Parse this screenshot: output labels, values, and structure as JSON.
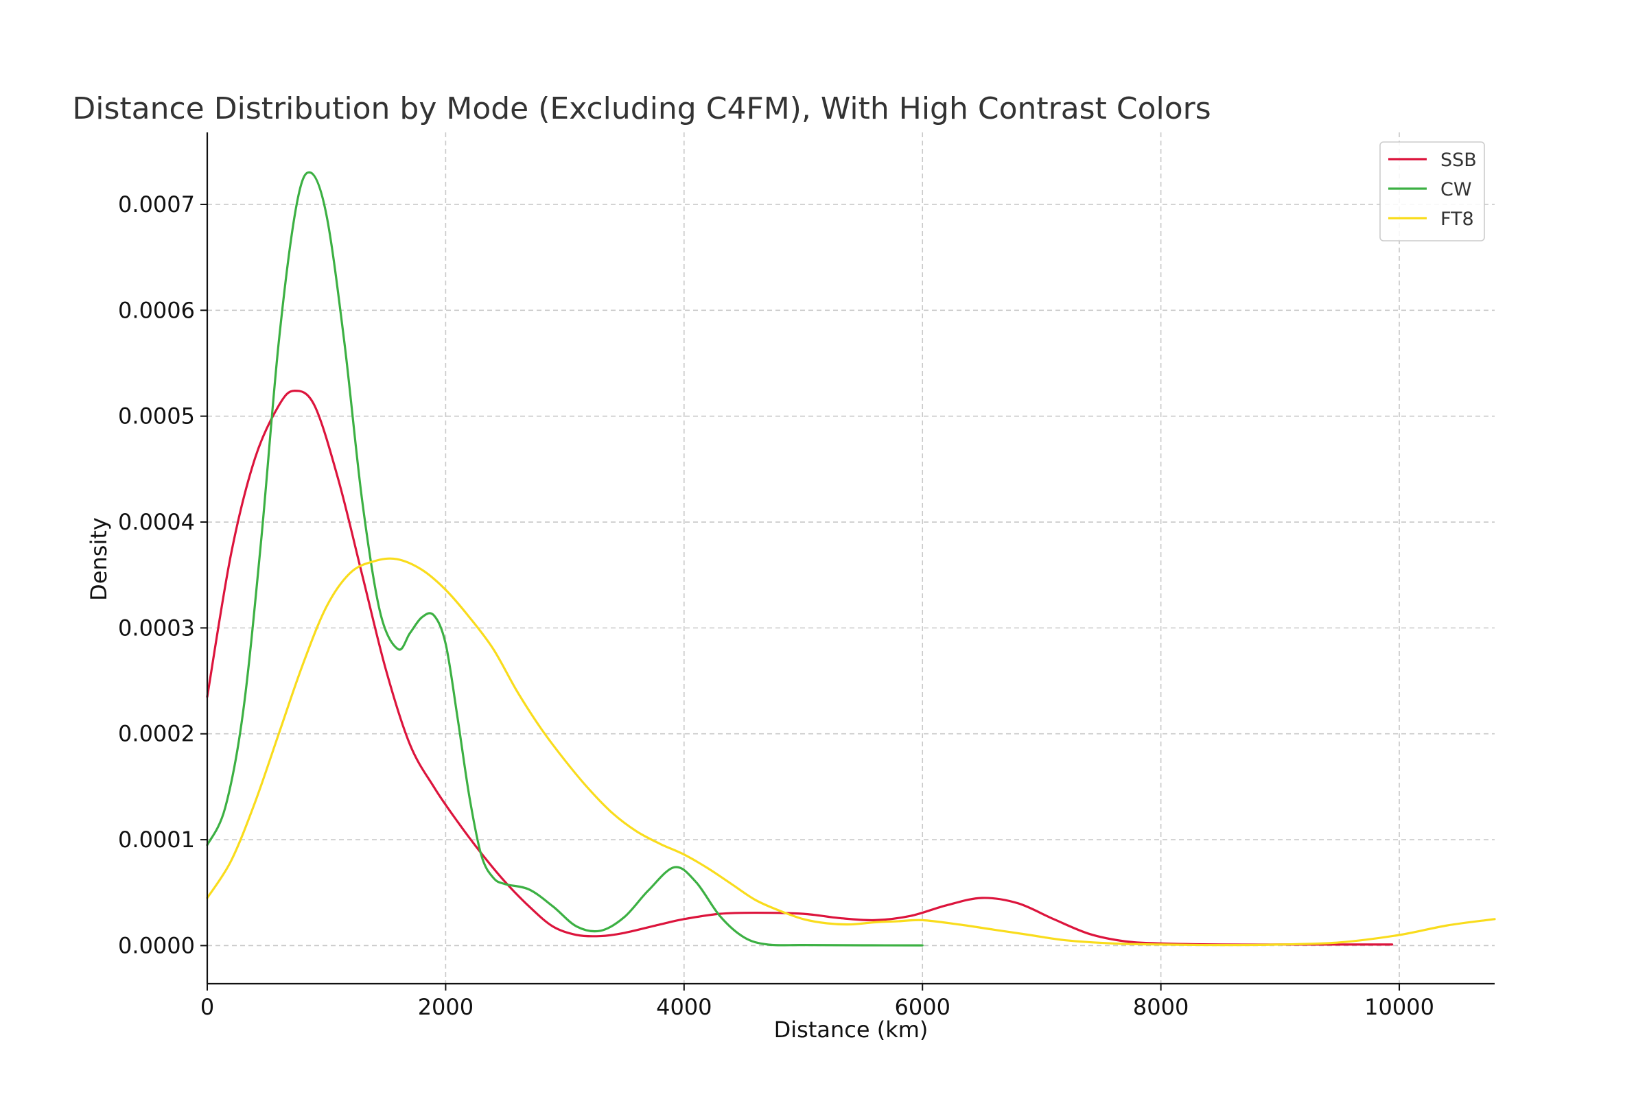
{
  "chart_data": {
    "type": "line",
    "title": "Distance Distribution by Mode (Excluding C4FM), With High Contrast Colors",
    "xlabel": "Distance (km)",
    "ylabel": "Density",
    "xlim": [
      0,
      10800
    ],
    "ylim": [
      -3.6e-05,
      0.000768
    ],
    "x_ticks": [
      0,
      2000,
      4000,
      6000,
      8000,
      10000
    ],
    "x_tick_labels": [
      "0",
      "2000",
      "4000",
      "6000",
      "8000",
      "10000"
    ],
    "y_ticks": [
      0.0,
      0.0001,
      0.0002,
      0.0003,
      0.0004,
      0.0005,
      0.0006,
      0.0007
    ],
    "y_tick_labels": [
      "0.0000",
      "0.0001",
      "0.0002",
      "0.0003",
      "0.0004",
      "0.0005",
      "0.0006",
      "0.0007"
    ],
    "grid": true,
    "legend_position": "top-right",
    "series": [
      {
        "name": "SSB",
        "color": "#dc143c",
        "x": [
          0,
          200,
          400,
          600,
          733,
          900,
          1100,
          1300,
          1500,
          1700,
          1900,
          2100,
          2300,
          2500,
          2700,
          2900,
          3100,
          3300,
          3500,
          3800,
          4000,
          4300,
          4600,
          5000,
          5300,
          5600,
          5900,
          6200,
          6500,
          6800,
          7100,
          7400,
          7700,
          8000,
          8500,
          9000,
          9500,
          9940
        ],
        "y": [
          0.000235,
          0.00037,
          0.00046,
          0.00051,
          0.000524,
          0.00051,
          0.00044,
          0.00035,
          0.00026,
          0.00019,
          0.00015,
          0.000117,
          8.7e-05,
          6e-05,
          3.7e-05,
          1.8e-05,
          1e-05,
          9e-06,
          1.2e-05,
          2e-05,
          2.5e-05,
          3e-05,
          3.1e-05,
          3e-05,
          2.6e-05,
          2.4e-05,
          2.8e-05,
          3.8e-05,
          4.5e-05,
          4e-05,
          2.5e-05,
          1.1e-05,
          4e-06,
          2e-06,
          1e-06,
          1e-06,
          1e-06,
          1e-06
        ]
      },
      {
        "name": "CW",
        "color": "#3cb043",
        "x": [
          0,
          150,
          300,
          450,
          600,
          750,
          867,
          1000,
          1150,
          1300,
          1450,
          1600,
          1700,
          1800,
          1900,
          2000,
          2100,
          2200,
          2300,
          2400,
          2500,
          2700,
          2900,
          3100,
          3300,
          3500,
          3700,
          3920,
          4100,
          4300,
          4500,
          4700,
          5000,
          5500,
          6000
        ],
        "y": [
          9.5e-05,
          0.00013,
          0.00022,
          0.00038,
          0.00057,
          0.0007,
          0.00073,
          0.00069,
          0.00057,
          0.00042,
          0.000315,
          0.00028,
          0.000295,
          0.00031,
          0.000312,
          0.000285,
          0.000215,
          0.00014,
          8.5e-05,
          6.4e-05,
          5.8e-05,
          5.3e-05,
          3.7e-05,
          1.8e-05,
          1.4e-05,
          2.7e-05,
          5.2e-05,
          7.4e-05,
          6e-05,
          2.8e-05,
          8e-06,
          1e-06,
          5e-07,
          3e-07,
          2e-07
        ]
      },
      {
        "name": "FT8",
        "color": "#f9dc1c",
        "x": [
          0,
          200,
          400,
          600,
          800,
          1000,
          1200,
          1400,
          1590,
          1800,
          2000,
          2200,
          2400,
          2600,
          2800,
          3000,
          3200,
          3400,
          3600,
          3800,
          4000,
          4200,
          4400,
          4600,
          4800,
          5000,
          5200,
          5400,
          5600,
          5800,
          6000,
          6300,
          6600,
          6900,
          7200,
          7600,
          8000,
          8500,
          9000,
          9500,
          10000,
          10400,
          10800
        ],
        "y": [
          4.5e-05,
          8e-05,
          0.000135,
          0.0002,
          0.000265,
          0.00032,
          0.000352,
          0.000363,
          0.000365,
          0.000355,
          0.000336,
          0.00031,
          0.00028,
          0.00024,
          0.000205,
          0.000175,
          0.000148,
          0.000125,
          0.000108,
          9.6e-05,
          8.6e-05,
          7.3e-05,
          5.8e-05,
          4.3e-05,
          3.3e-05,
          2.5e-05,
          2.1e-05,
          2e-05,
          2.2e-05,
          2.3e-05,
          2.4e-05,
          2e-05,
          1.5e-05,
          1e-05,
          5e-06,
          2e-06,
          1e-06,
          5e-07,
          1e-06,
          3e-06,
          1e-05,
          1.9e-05,
          2.5e-05
        ]
      }
    ]
  }
}
